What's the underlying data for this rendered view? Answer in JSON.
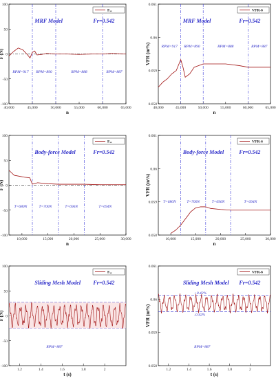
{
  "chart_data": [
    {
      "type": "line",
      "title": "MRF Model",
      "fr_label": "Fr=0.542",
      "ylabel": "F (N)",
      "xlabel": "n",
      "xlim": [
        40000,
        65000
      ],
      "ylim": [
        -100,
        100
      ],
      "xticks": [
        "40,000",
        "45,000",
        "50,000",
        "55,000",
        "60,000",
        "65,000"
      ],
      "yticks": [
        "100",
        "50",
        "0",
        "-50",
        "-100"
      ],
      "legend": "Fₓₓ",
      "segments": [
        "RPM=917",
        "RPM=890",
        "RPM=888",
        "RPM=887"
      ],
      "hlines": [
        0
      ],
      "vlines": [
        45000,
        50000,
        60000
      ],
      "x": [
        40000,
        41000,
        42000,
        43000,
        44000,
        44500,
        45000,
        45500,
        46000,
        47000,
        48000,
        50000,
        52000,
        55000,
        58000,
        60000,
        62000,
        65000
      ],
      "y": [
        -4,
        5,
        12,
        8,
        -2,
        -8,
        3,
        6,
        -2,
        -1,
        1,
        0,
        0,
        -1,
        0,
        0,
        1,
        0
      ]
    },
    {
      "type": "line",
      "title": "MRF Model",
      "fr_label": "Fr=0.542",
      "ylabel": "VFR (m³/s)",
      "xlabel": "n",
      "xlim": [
        40000,
        65000
      ],
      "ylim": [
        0.058,
        0.061
      ],
      "xticks": [
        "40,000",
        "45,000",
        "50,000",
        "55,000",
        "60,000",
        "65,000"
      ],
      "yticks": [
        "0.061",
        "0.06",
        "0.059",
        "0.058"
      ],
      "legend": "VFR-6",
      "segments": [
        "RPM=917",
        "RPM=890",
        "RPM=888",
        "RPM=887"
      ],
      "vlines": [
        45000,
        50000,
        60000
      ],
      "x": [
        40000,
        41000,
        42000,
        43000,
        44000,
        45000,
        45500,
        46000,
        47000,
        48000,
        50000,
        52000,
        55000,
        58000,
        60000,
        62000,
        65000
      ],
      "y": [
        0.0585,
        0.05865,
        0.05875,
        0.0589,
        0.059,
        0.05933,
        0.0591,
        0.0588,
        0.0589,
        0.0591,
        0.0592,
        0.0592,
        0.0592,
        0.05915,
        0.0591,
        0.0591,
        0.0591
      ]
    },
    {
      "type": "line",
      "title": "Body-force Model",
      "fr_label": "Fr=0.542",
      "ylabel": "F (N)",
      "xlabel": "n",
      "xlim": [
        7500,
        30000
      ],
      "ylim": [
        -100,
        100
      ],
      "xticks": [
        "10,000",
        "15,000",
        "20,000",
        "25,000",
        "30,000"
      ],
      "yticks": [
        "100",
        "50",
        "0",
        "-50",
        "-100"
      ],
      "legend": "Fₓₓ",
      "segments": [
        "T=680N",
        "T=700N",
        "T=696N",
        "T=694N"
      ],
      "hlines": [
        0
      ],
      "vlines": [
        12000,
        17000,
        22000
      ],
      "x": [
        7500,
        8500,
        9500,
        10500,
        11500,
        12000,
        13000,
        15000,
        17000,
        20000,
        22000,
        25000,
        30000
      ],
      "y": [
        30,
        20,
        18,
        16,
        15,
        2,
        5,
        3,
        2,
        2,
        2,
        1,
        1
      ]
    },
    {
      "type": "line",
      "title": "Body-force Model",
      "fr_label": "Fr=0.542",
      "ylabel": "VFR (m³/s)",
      "xlabel": "n",
      "xlim": [
        7500,
        30000
      ],
      "ylim": [
        0.058,
        0.061
      ],
      "xticks": [
        "10,000",
        "15,000",
        "20,000",
        "25,000",
        "30,000"
      ],
      "yticks": [
        "0.061",
        "0.06",
        "0.059",
        "0.058"
      ],
      "legend": "VFR-6",
      "segments": [
        "T=680N",
        "T=700N",
        "T=696N",
        "T=694N"
      ],
      "vlines": [
        12000,
        17000,
        22000
      ],
      "x": [
        10000,
        11000,
        12000,
        13000,
        14000,
        15000,
        16000,
        17000,
        18000,
        20000,
        22000,
        25000,
        30000
      ],
      "y": [
        0.05805,
        0.05815,
        0.0583,
        0.0585,
        0.0587,
        0.05882,
        0.05885,
        0.05885,
        0.0588,
        0.05877,
        0.05875,
        0.05875,
        0.05875
      ]
    },
    {
      "type": "line",
      "title": "Sliding Mesh Model",
      "fr_label": "Fr=0.542",
      "ylabel": "F (N)",
      "xlabel": "t (s)",
      "xlim": [
        1.1,
        2.2
      ],
      "ylim": [
        -100,
        100
      ],
      "xticks": [
        "1.2",
        "1.4",
        "1.6",
        "1.8",
        "2"
      ],
      "yticks": [
        "100",
        "50",
        "0",
        "-50",
        "-100"
      ],
      "legend": "Fₓₓ",
      "segments": [
        "RPM=887"
      ],
      "hlines": [
        27,
        -25
      ],
      "oscillation": {
        "amplitude": 18,
        "period": 0.052,
        "offset": 0
      }
    },
    {
      "type": "line",
      "title": "Sliding Mesh Model",
      "fr_label": "Fr=0.542",
      "ylabel": "VFR (m³/s)",
      "xlabel": "t (s)",
      "xlim": [
        1.1,
        2.2
      ],
      "ylim": [
        0.058,
        0.061
      ],
      "xticks": [
        "1.2",
        "1.4",
        "1.6",
        "1.8",
        "2"
      ],
      "yticks": [
        "0.061",
        "0.06",
        "0.059",
        "0.058"
      ],
      "legend": "VFR-6",
      "segments": [
        "RPM=887"
      ],
      "hlines": [
        0.06012,
        0.05962
      ],
      "band_labels": [
        "+0.42%",
        "-0.42%"
      ],
      "oscillation": {
        "amplitude": 0.0002,
        "period": 0.052,
        "offset": 0.05987
      }
    }
  ]
}
